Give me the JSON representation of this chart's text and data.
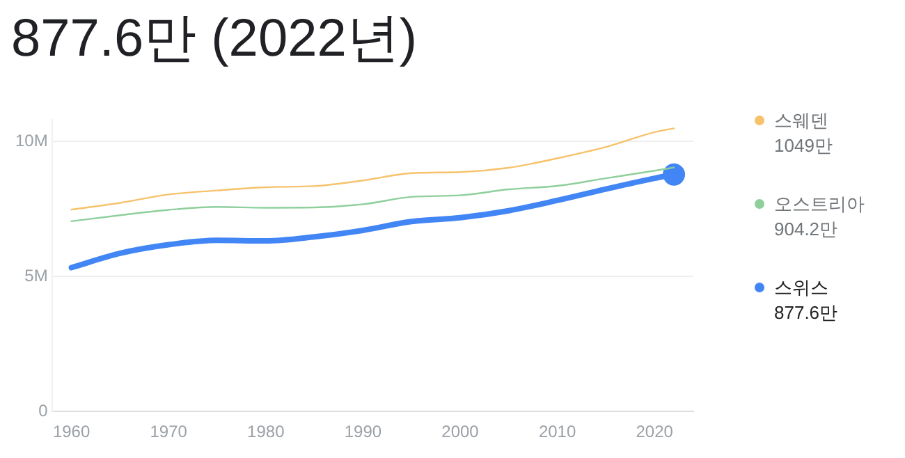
{
  "chart_data": {
    "type": "line",
    "title": "877.6만 (2022년)",
    "x": [
      1960,
      1965,
      1970,
      1975,
      1980,
      1985,
      1990,
      1995,
      2000,
      2005,
      2010,
      2015,
      2020,
      2022
    ],
    "series": [
      {
        "name": "스웨덴",
        "color": "#f6c26b",
        "values": [
          7.48,
          7.73,
          8.04,
          8.19,
          8.31,
          8.35,
          8.56,
          8.83,
          8.87,
          9.03,
          9.38,
          9.8,
          10.35,
          10.49
        ]
      },
      {
        "name": "오스트리아",
        "color": "#8ecf9c",
        "values": [
          7.05,
          7.27,
          7.47,
          7.58,
          7.55,
          7.56,
          7.68,
          7.95,
          8.01,
          8.23,
          8.36,
          8.64,
          8.92,
          9.04
        ]
      },
      {
        "name": "스위스",
        "color": "#4285f4",
        "values": [
          5.33,
          5.86,
          6.18,
          6.34,
          6.32,
          6.47,
          6.71,
          7.04,
          7.18,
          7.44,
          7.82,
          8.24,
          8.64,
          8.78
        ]
      }
    ],
    "xlim": [
      1958,
      2024
    ],
    "xticks": [
      1960,
      1970,
      1980,
      1990,
      2000,
      2010,
      2020
    ],
    "ylim": [
      0,
      10.8
    ],
    "annotations": [
      "1049만",
      "904.2만",
      "877.6만"
    ],
    "yticks": [
      {
        "value": 0,
        "label": "0"
      },
      {
        "value": 5,
        "label": "5M"
      },
      {
        "value": 10,
        "label": "10M"
      }
    ],
    "grid": "y",
    "legend": "right"
  }
}
